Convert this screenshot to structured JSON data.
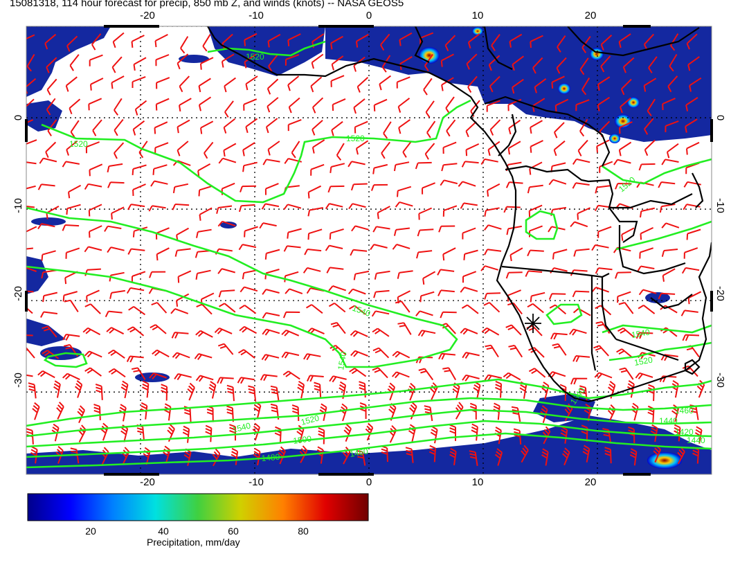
{
  "title": "15081318, 114 hour forecast for precip, 850 mb Z, and winds (knots) -- NASA GEOS5",
  "map": {
    "lon_range": [
      -30,
      30
    ],
    "lat_range": [
      -39,
      10
    ],
    "lon_ticks": [
      "-20",
      "-10",
      "0",
      "10",
      "20"
    ],
    "lat_ticks": [
      "0",
      "-10",
      "-20",
      "-30"
    ],
    "grid": "dotted",
    "contour_color": "#22ee22",
    "wind_barb_color": "#ee1111",
    "coastline_color": "#000000",
    "contour_labels": [
      "1520",
      "1520",
      "1520",
      "1540",
      "1540",
      "1540",
      "1520",
      "1540",
      "1520",
      "1500",
      "1480",
      "1460",
      "1440",
      "1460",
      "1440",
      "1420",
      "1540",
      "1520"
    ],
    "marker": "star-marker"
  },
  "colorbar": {
    "ticks": [
      "20",
      "40",
      "60",
      "80"
    ],
    "tick_values": [
      20,
      40,
      60,
      80
    ],
    "range": [
      0,
      98
    ],
    "label": "Precipitation, mm/day",
    "colors": [
      "#00008b",
      "#0000ff",
      "#0080ff",
      "#00e0e0",
      "#40d040",
      "#d0d000",
      "#ff8000",
      "#e00000",
      "#700000"
    ]
  }
}
